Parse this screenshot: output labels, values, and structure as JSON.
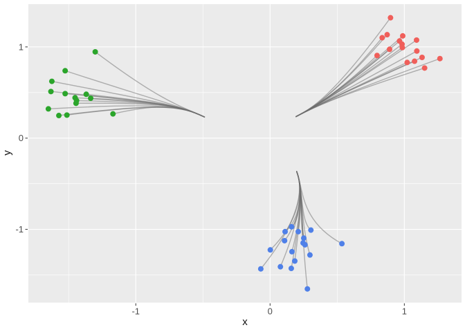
{
  "figure": {
    "background": "#FFFFFF",
    "panel_bg": "#EBEBEB",
    "grid_color": "#FFFFFF",
    "tick_mark_color": "#333333",
    "tick_label_color": "#4D4D4D",
    "axis_title_color": "#111111"
  },
  "chart_data": {
    "type": "scatter",
    "title": "",
    "xlabel": "x",
    "ylabel": "y",
    "xlim": [
      -1.8,
      1.426
    ],
    "ylim": [
      -1.803,
      1.469
    ],
    "grid": "major+minor white on grey panel",
    "legend": "none",
    "x_ticks": {
      "values": [
        -1,
        0,
        1
      ],
      "labels": [
        "-1",
        "0",
        "1"
      ]
    },
    "y_ticks": {
      "values": [
        -1,
        0,
        1
      ],
      "labels": [
        "-1",
        "0",
        "1"
      ]
    },
    "x_minor_ticks": [
      -1.5,
      -0.5,
      0.5
    ],
    "y_minor_ticks": [
      -1.5,
      -0.5,
      0.5
    ],
    "segment_color": "#6E6E6E",
    "segment_opacity": 0.5,
    "segment_width": 1.4,
    "point_radius": 4,
    "series": [
      {
        "name": "green-cluster",
        "color": "#2BA52B",
        "trunk": {
          "tip": [
            -0.489,
            0.232
          ],
          "c1": [
            -0.661,
            0.352
          ],
          "c2": [
            -0.8,
            0.39
          ]
        },
        "points": [
          [
            -1.302,
            0.946
          ],
          [
            -1.526,
            0.739
          ],
          [
            -1.625,
            0.623
          ],
          [
            -1.632,
            0.511
          ],
          [
            -1.526,
            0.488
          ],
          [
            -1.452,
            0.443
          ],
          [
            -1.441,
            0.412
          ],
          [
            -1.445,
            0.382
          ],
          [
            -1.369,
            0.481
          ],
          [
            -1.336,
            0.437
          ],
          [
            -1.651,
            0.321
          ],
          [
            -1.573,
            0.248
          ],
          [
            -1.513,
            0.253
          ],
          [
            -1.17,
            0.266
          ]
        ]
      },
      {
        "name": "red-cluster",
        "color": "#F05F5A",
        "trunk": {
          "tip": [
            0.193,
            0.236
          ],
          "c1": [
            0.303,
            0.321
          ],
          "c2": [
            0.462,
            0.443
          ]
        },
        "points": [
          [
            0.897,
            1.32
          ],
          [
            0.872,
            1.134
          ],
          [
            0.835,
            1.101
          ],
          [
            0.988,
            1.121
          ],
          [
            0.964,
            1.065
          ],
          [
            0.983,
            1.03
          ],
          [
            0.985,
            0.993
          ],
          [
            0.89,
            0.974
          ],
          [
            0.797,
            0.906
          ],
          [
            1.091,
            1.075
          ],
          [
            1.093,
            0.955
          ],
          [
            1.132,
            0.885
          ],
          [
            1.021,
            0.83
          ],
          [
            1.076,
            0.843
          ],
          [
            1.151,
            0.769
          ],
          [
            1.265,
            0.872
          ]
        ]
      },
      {
        "name": "blue-cluster",
        "color": "#4F80E8",
        "trunk": {
          "tip": [
            0.198,
            -0.366
          ],
          "c1": [
            0.25,
            -0.56
          ],
          "c2": [
            0.222,
            -0.905
          ]
        },
        "points": [
          [
            0.16,
            -0.972
          ],
          [
            0.112,
            -1.025
          ],
          [
            0.21,
            -1.025
          ],
          [
            0.304,
            -1.008
          ],
          [
            0.108,
            -1.124
          ],
          [
            0.251,
            -1.096
          ],
          [
            0.246,
            -1.149
          ],
          [
            0.26,
            -1.169
          ],
          [
            0.163,
            -1.245
          ],
          [
            0.002,
            -1.225
          ],
          [
            -0.069,
            -1.433
          ],
          [
            0.077,
            -1.41
          ],
          [
            0.158,
            -1.428
          ],
          [
            0.184,
            -1.347
          ],
          [
            0.297,
            -1.281
          ],
          [
            0.535,
            -1.157
          ],
          [
            0.278,
            -1.653
          ]
        ]
      }
    ]
  }
}
